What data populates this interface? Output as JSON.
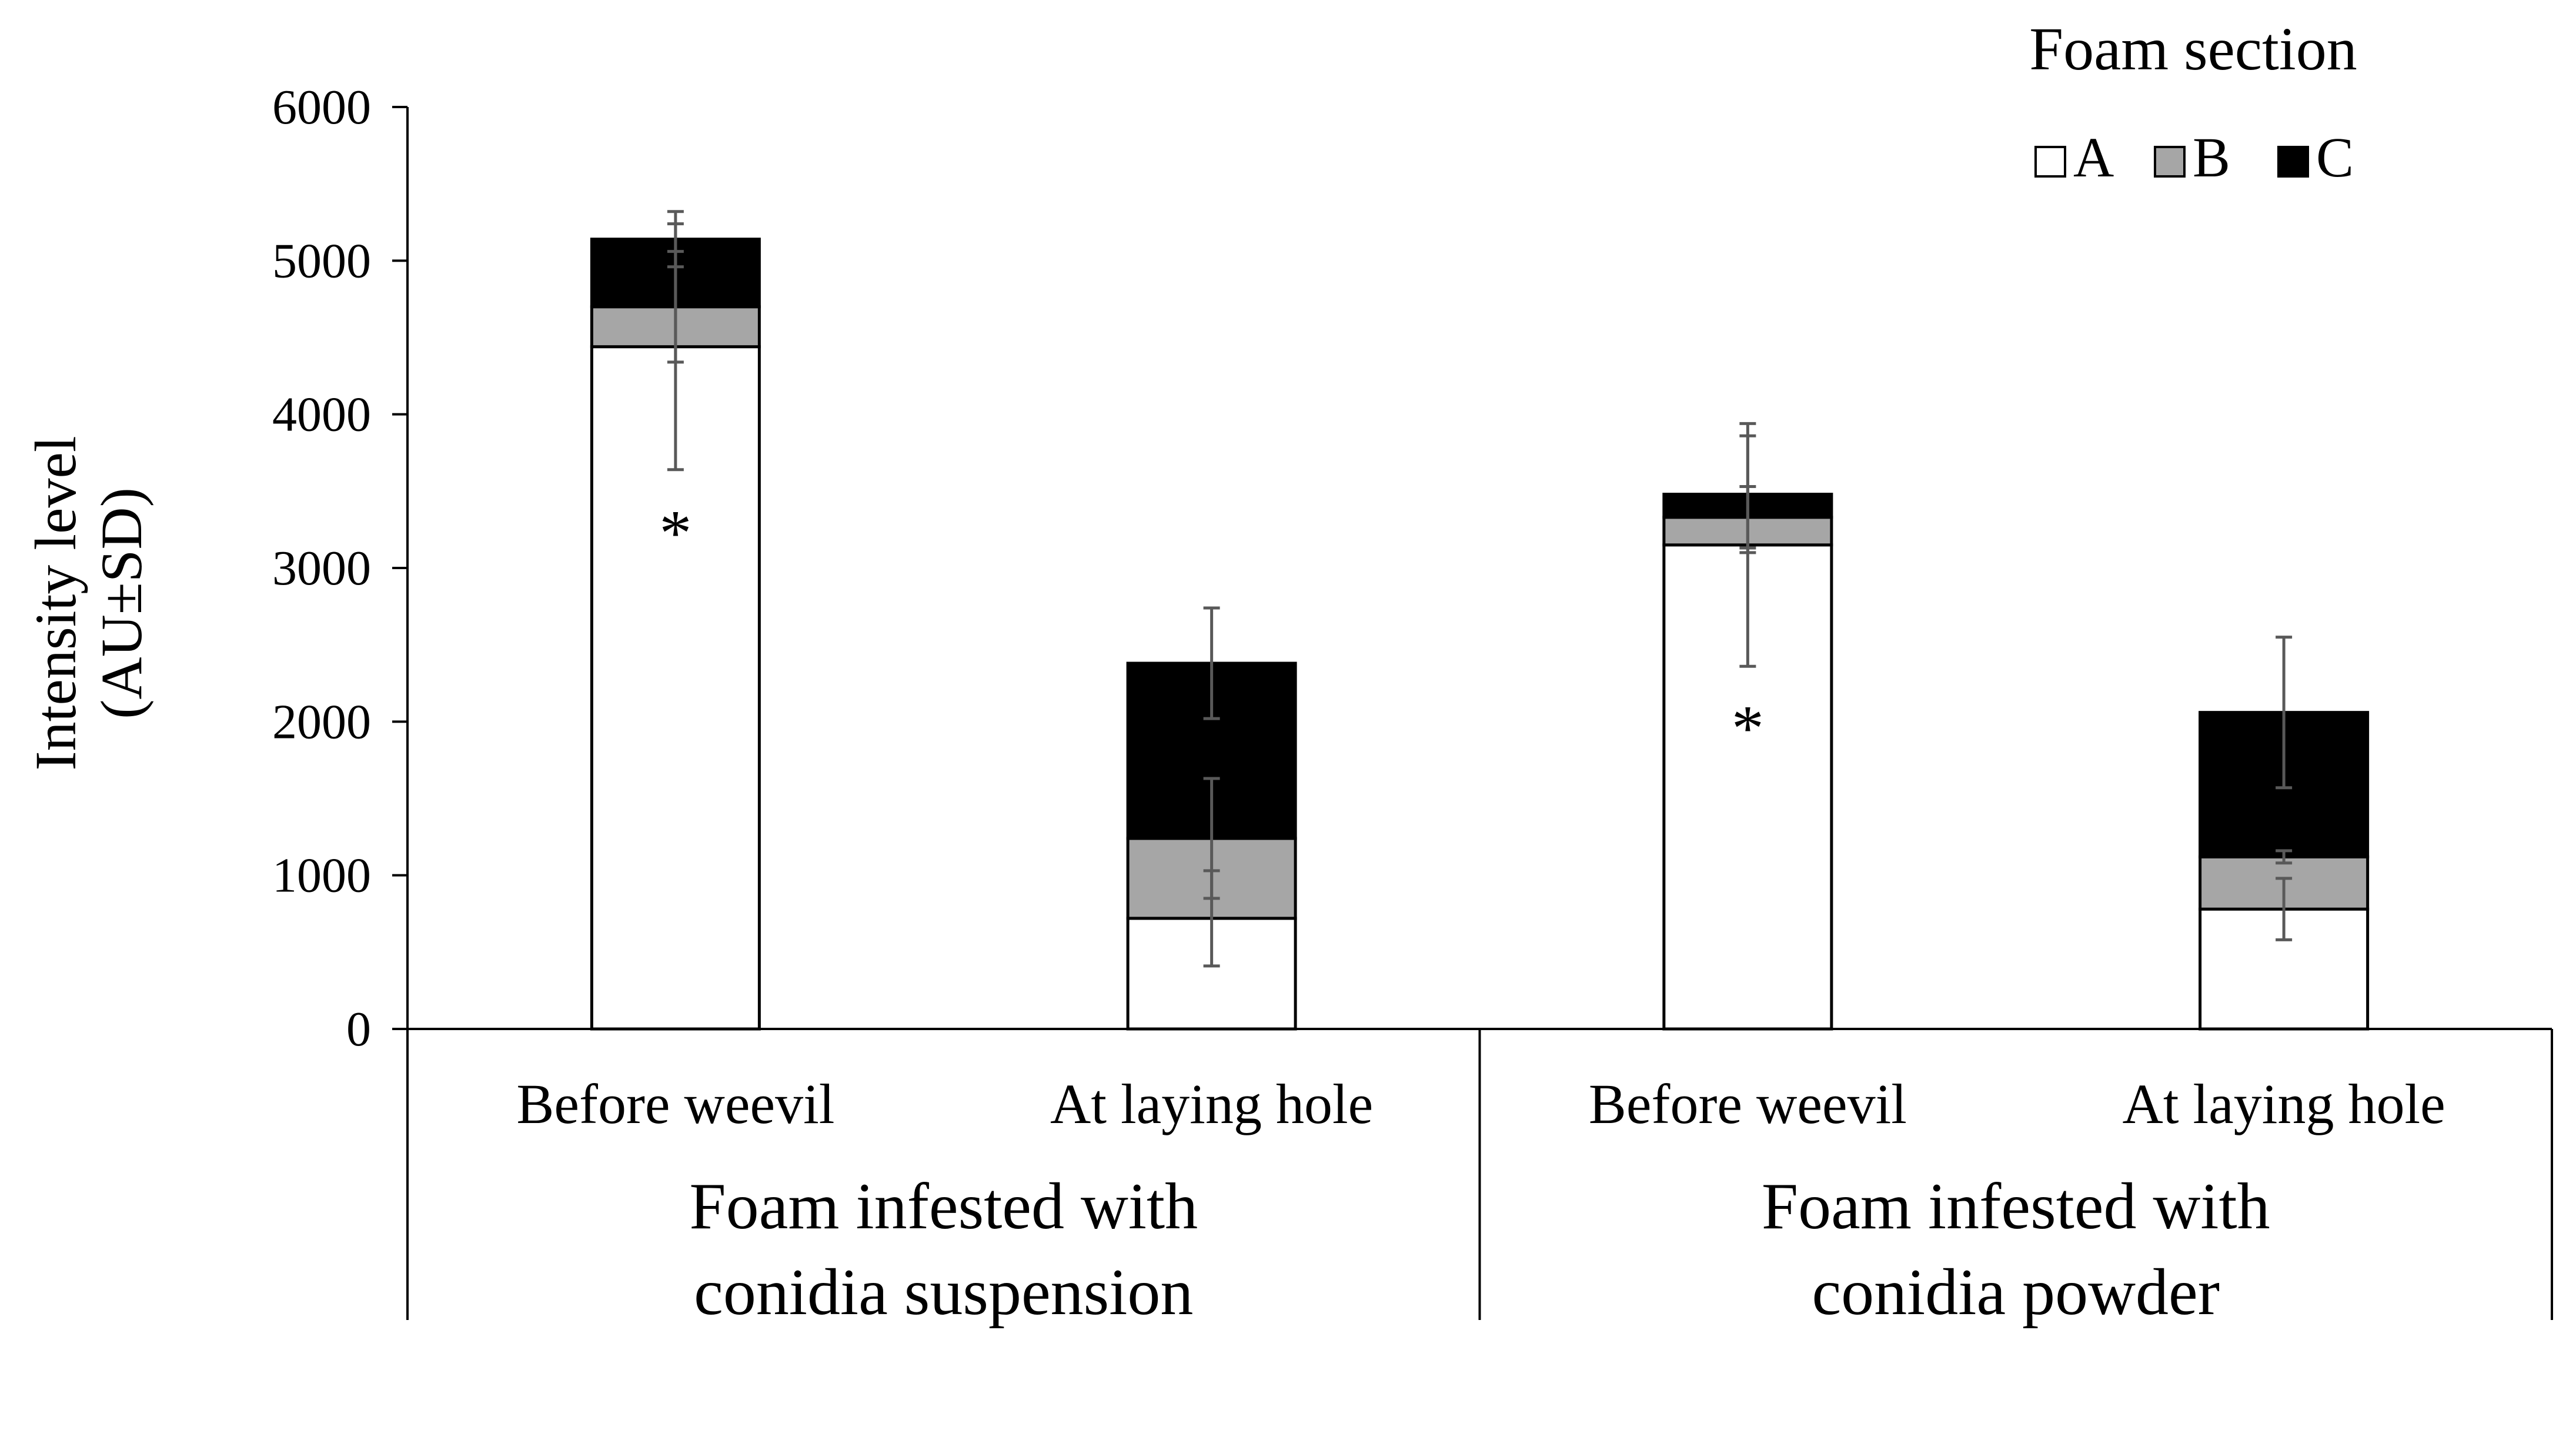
{
  "chart_data": {
    "type": "bar",
    "stacked": true,
    "ylabel_lines": [
      "Intensity level",
      "(AU±SD)"
    ],
    "ylim": [
      0,
      6000
    ],
    "yticks": [
      0,
      1000,
      2000,
      3000,
      4000,
      5000,
      6000
    ],
    "categories": [
      "Before weevil",
      "At laying hole",
      "Before weevil",
      "At laying hole"
    ],
    "groups": [
      {
        "label_lines": [
          "Foam infested with",
          "conidia suspension"
        ]
      },
      {
        "label_lines": [
          "Foam infested with",
          "conidia powder"
        ]
      }
    ],
    "legend": {
      "title": "Foam section",
      "position": "top-right"
    },
    "grid": false,
    "series": [
      {
        "name": "A",
        "color": "#ffffff",
        "values": [
          4440,
          720,
          3150,
          780
        ],
        "sd": [
          800,
          310,
          790,
          200
        ]
      },
      {
        "name": "B",
        "color": "#a6a6a6",
        "values": [
          260,
          520,
          180,
          340
        ],
        "sd": [
          360,
          390,
          200,
          40
        ]
      },
      {
        "name": "C",
        "color": "#000000",
        "values": [
          440,
          1140,
          150,
          940
        ],
        "sd": [
          180,
          360,
          380,
          490
        ]
      }
    ],
    "annotations": [
      {
        "category_index": 0,
        "text": "*",
        "y": 3200
      },
      {
        "category_index": 2,
        "text": "*",
        "y": 1930
      }
    ]
  }
}
